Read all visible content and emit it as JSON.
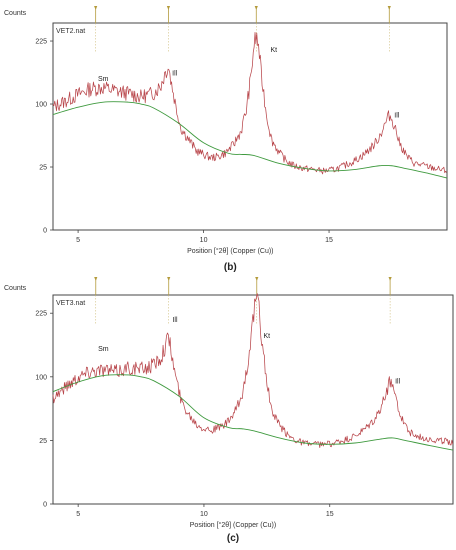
{
  "chart_data": [
    {
      "type": "line",
      "panel_label": "(b)",
      "sample_name": "VET2.nat",
      "ylabel": "Counts",
      "xlabel": "Position [°2θ] (Copper (Cu))",
      "x_ticks": [
        5,
        10,
        15
      ],
      "y_ticks": [
        0,
        25,
        100,
        225
      ],
      "y_scale": "sqrt",
      "xlim": [
        4,
        19.7
      ],
      "ylim": [
        0,
        270
      ],
      "grid": false,
      "peak_markers": [
        5.7,
        8.6,
        12.1,
        17.4
      ],
      "annotations": [
        {
          "text": "Sm",
          "x": 6.0,
          "y": 140
        },
        {
          "text": "Ill",
          "x": 8.85,
          "y": 150
        },
        {
          "text": "Kt",
          "x": 12.8,
          "y": 200
        },
        {
          "text": "Ill",
          "x": 17.7,
          "y": 80
        }
      ],
      "series": [
        {
          "role": "measured",
          "color": "#b8454a",
          "x": [
            4.0,
            4.5,
            5.0,
            5.5,
            6.0,
            6.5,
            7.0,
            7.5,
            8.0,
            8.3,
            8.5,
            8.6,
            8.7,
            8.9,
            9.1,
            9.4,
            9.7,
            10.0,
            10.3,
            10.6,
            10.9,
            11.2,
            11.5,
            11.7,
            11.9,
            12.0,
            12.1,
            12.2,
            12.3,
            12.5,
            12.7,
            13.0,
            13.3,
            13.6,
            14.0,
            14.4,
            14.8,
            15.2,
            15.6,
            16.0,
            16.4,
            16.8,
            17.0,
            17.2,
            17.4,
            17.6,
            17.8,
            18.1,
            18.4,
            18.8,
            19.2,
            19.7
          ],
          "y": [
            95,
            105,
            116,
            126,
            128,
            122,
            118,
            112,
            118,
            132,
            160,
            170,
            140,
            95,
            65,
            52,
            40,
            36,
            33,
            34,
            38,
            46,
            62,
            90,
            150,
            215,
            235,
            210,
            150,
            85,
            52,
            38,
            30,
            26,
            24,
            23,
            22,
            23,
            26,
            30,
            36,
            46,
            55,
            68,
            84,
            70,
            48,
            34,
            28,
            26,
            24,
            22
          ]
        },
        {
          "role": "background",
          "color": "#3f9a3f",
          "x": [
            4.0,
            5.0,
            6.0,
            7.0,
            7.5,
            8.0,
            9.0,
            10.0,
            11.0,
            11.5,
            12.0,
            13.0,
            14.0,
            15.0,
            16.0,
            17.0,
            17.5,
            18.0,
            19.0,
            19.7
          ],
          "y": [
            84,
            95,
            103,
            103,
            100,
            94,
            72,
            48,
            37,
            36,
            35,
            28,
            24,
            22,
            23,
            26,
            26,
            24,
            20,
            17
          ]
        }
      ]
    },
    {
      "type": "line",
      "panel_label": "(c)",
      "sample_name": "VET3.nat",
      "ylabel": "Counts",
      "xlabel": "Position [°2θ] (Copper (Cu))",
      "x_ticks": [
        5,
        10,
        15
      ],
      "y_ticks": [
        0,
        25,
        100,
        225
      ],
      "y_scale": "sqrt",
      "xlim": [
        4,
        19.9
      ],
      "ylim": [
        0,
        270
      ],
      "grid": false,
      "peak_markers": [
        5.7,
        8.6,
        12.1,
        17.4
      ],
      "annotations": [
        {
          "text": "Sm",
          "x": 6.0,
          "y": 145
        },
        {
          "text": "Ill",
          "x": 8.85,
          "y": 205
        },
        {
          "text": "Kt",
          "x": 12.5,
          "y": 170
        },
        {
          "text": "Ill",
          "x": 17.7,
          "y": 90
        }
      ],
      "series": [
        {
          "role": "measured",
          "color": "#b8454a",
          "x": [
            4.0,
            4.5,
            5.0,
            5.5,
            6.0,
            6.5,
            7.0,
            7.5,
            8.0,
            8.3,
            8.5,
            8.6,
            8.7,
            8.9,
            9.1,
            9.4,
            9.7,
            10.0,
            10.3,
            10.6,
            10.9,
            11.2,
            11.5,
            11.7,
            11.9,
            12.0,
            12.1,
            12.2,
            12.3,
            12.5,
            12.7,
            13.0,
            13.3,
            13.6,
            14.0,
            14.4,
            14.8,
            15.2,
            15.6,
            16.0,
            16.4,
            16.8,
            17.0,
            17.2,
            17.4,
            17.6,
            17.8,
            18.1,
            18.4,
            18.8,
            19.2,
            19.9
          ],
          "y": [
            70,
            85,
            100,
            110,
            112,
            108,
            115,
            112,
            120,
            135,
            160,
            175,
            140,
            95,
            65,
            50,
            40,
            36,
            34,
            36,
            40,
            50,
            70,
            110,
            180,
            235,
            255,
            230,
            165,
            90,
            52,
            38,
            30,
            26,
            23,
            22,
            22,
            23,
            25,
            28,
            34,
            44,
            55,
            70,
            95,
            75,
            50,
            34,
            28,
            27,
            25,
            24
          ]
        },
        {
          "role": "background",
          "color": "#3f9a3f",
          "x": [
            4.0,
            5.0,
            6.0,
            7.0,
            7.5,
            8.0,
            9.0,
            10.0,
            11.0,
            11.5,
            12.0,
            13.0,
            14.0,
            15.0,
            16.0,
            17.0,
            17.5,
            18.0,
            19.0,
            19.9
          ],
          "y": [
            78,
            92,
            102,
            103,
            100,
            94,
            72,
            46,
            36,
            35,
            33,
            27,
            23,
            22,
            23,
            26,
            27,
            25,
            21,
            18
          ]
        }
      ]
    }
  ]
}
